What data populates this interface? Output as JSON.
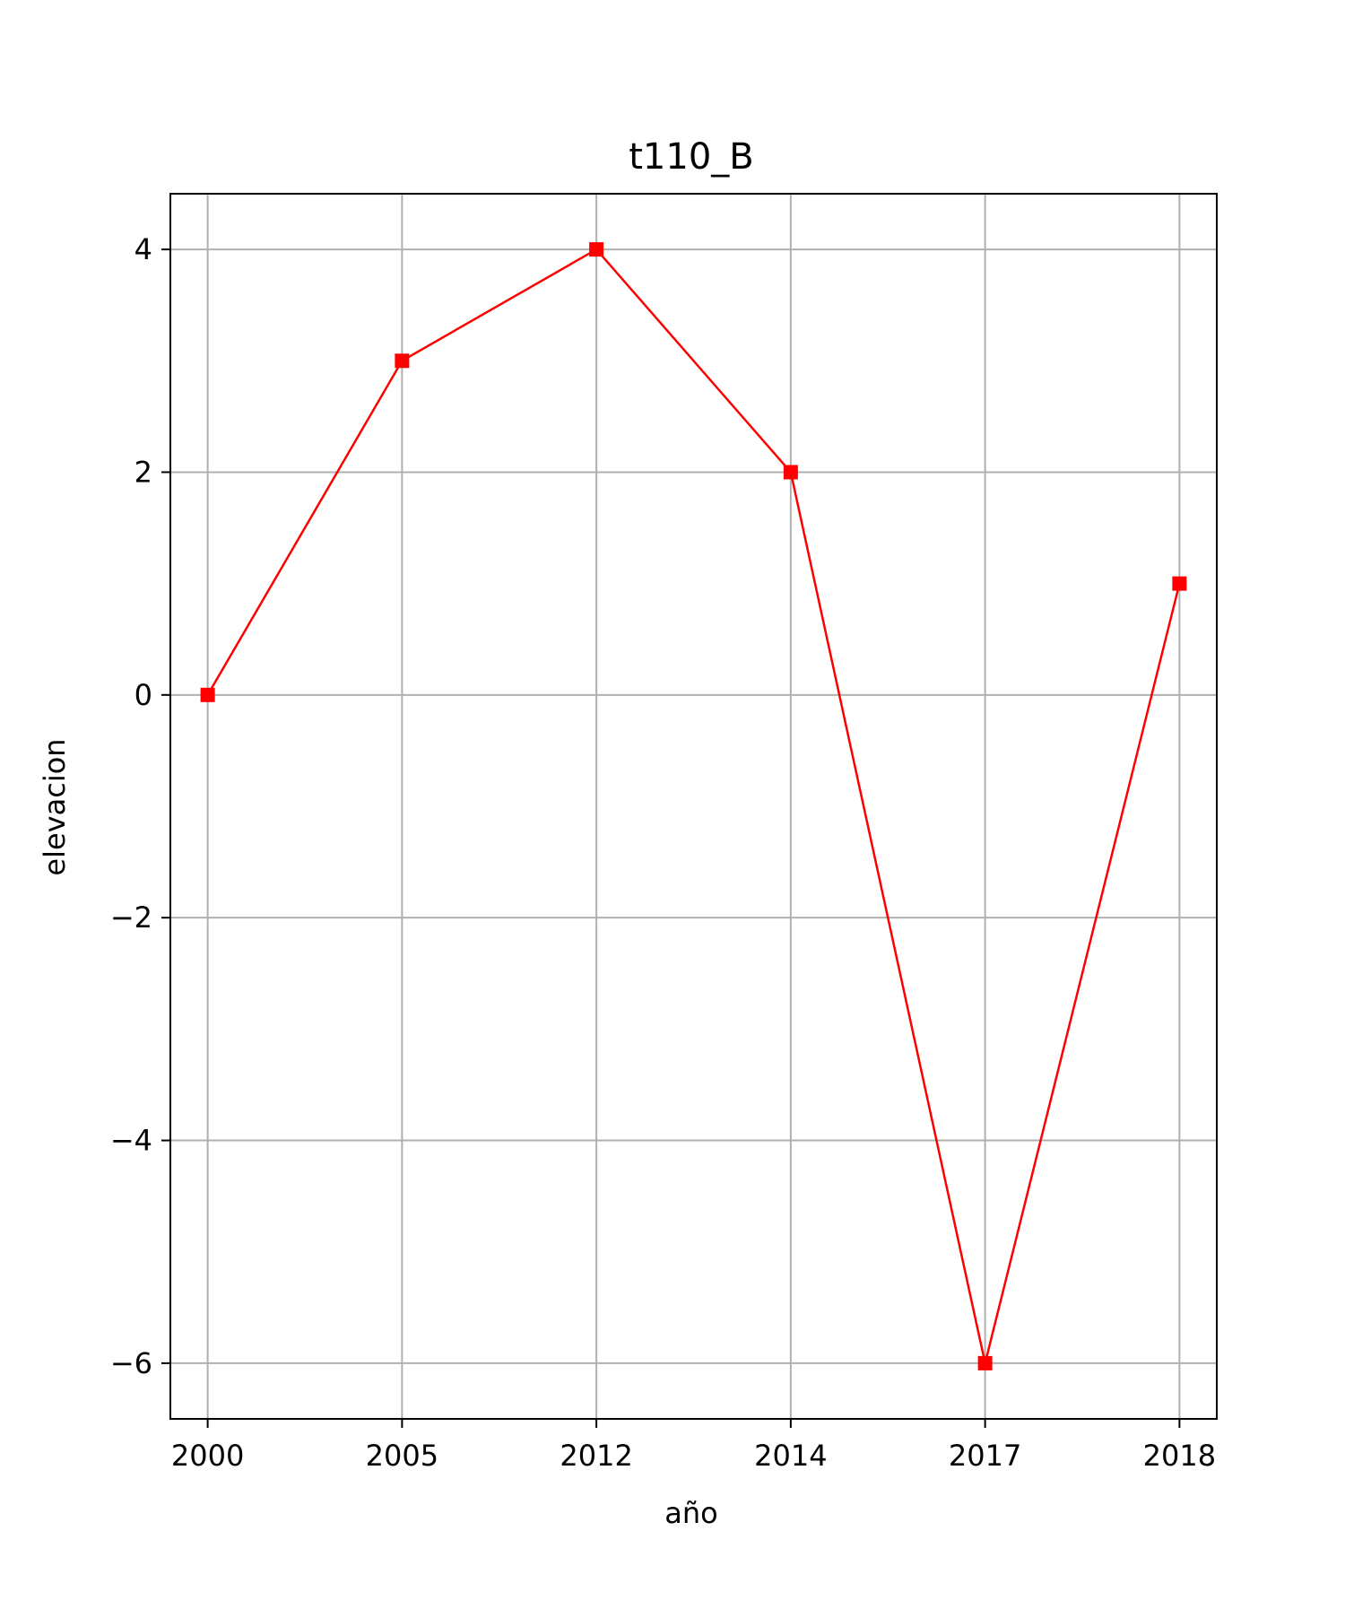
{
  "chart_data": {
    "type": "line",
    "title": "t110_B",
    "xlabel": "año",
    "ylabel": "elevacion",
    "categories": [
      "2000",
      "2005",
      "2012",
      "2014",
      "2017",
      "2018"
    ],
    "series": [
      {
        "values": [
          0,
          3,
          4,
          2,
          -6,
          1
        ],
        "color": "#ff0000",
        "marker": "square"
      }
    ],
    "ylim": [
      -6.5,
      4.5
    ],
    "yticks": [
      4,
      2,
      0,
      -2,
      -4,
      -6
    ],
    "ytick_labels": [
      "4",
      "2",
      "0",
      "−2",
      "−4",
      "−6"
    ],
    "grid": true,
    "grid_color": "#b0b0b0",
    "axis_color": "#000000"
  }
}
